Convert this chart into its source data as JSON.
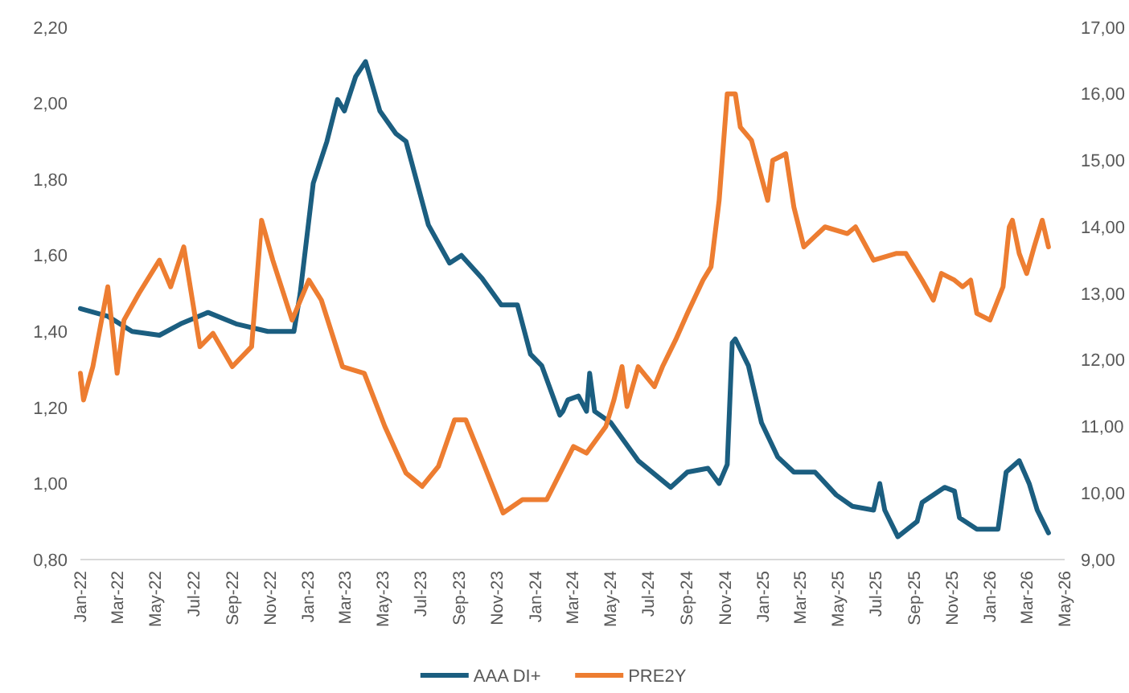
{
  "chart_data": {
    "type": "line",
    "xlim": [
      "2022-01-01",
      "2026-05-01"
    ],
    "xticks": [
      {
        "value": "2022-01",
        "label": "Jan-22"
      },
      {
        "value": "2022-03",
        "label": "Mar-22"
      },
      {
        "value": "2022-05",
        "label": "May-22"
      },
      {
        "value": "2022-07",
        "label": "Jul-22"
      },
      {
        "value": "2022-09",
        "label": "Sep-22"
      },
      {
        "value": "2022-11",
        "label": "Nov-22"
      },
      {
        "value": "2023-01",
        "label": "Jan-23"
      },
      {
        "value": "2023-03",
        "label": "Mar-23"
      },
      {
        "value": "2023-05",
        "label": "May-23"
      },
      {
        "value": "2023-07",
        "label": "Jul-23"
      },
      {
        "value": "2023-09",
        "label": "Sep-23"
      },
      {
        "value": "2023-11",
        "label": "Nov-23"
      },
      {
        "value": "2024-01",
        "label": "Jan-24"
      },
      {
        "value": "2024-03",
        "label": "Mar-24"
      },
      {
        "value": "2024-05",
        "label": "May-24"
      },
      {
        "value": "2024-07",
        "label": "Jul-24"
      },
      {
        "value": "2024-09",
        "label": "Sep-24"
      },
      {
        "value": "2024-11",
        "label": "Nov-24"
      },
      {
        "value": "2025-01",
        "label": "Jan-25"
      },
      {
        "value": "2025-03",
        "label": "Mar-25"
      },
      {
        "value": "2025-05",
        "label": "May-25"
      },
      {
        "value": "2025-07",
        "label": "Jul-25"
      },
      {
        "value": "2025-09",
        "label": "Sep-25"
      },
      {
        "value": "2025-11",
        "label": "Nov-25"
      },
      {
        "value": "2026-01",
        "label": "Jan-26"
      },
      {
        "value": "2026-03",
        "label": "Mar-26"
      },
      {
        "value": "2026-05",
        "label": "May-26"
      }
    ],
    "ylim": [
      0.8,
      2.2
    ],
    "yticks": [
      {
        "value": 0.8,
        "label": "0,80"
      },
      {
        "value": 1.0,
        "label": "1,00"
      },
      {
        "value": 1.2,
        "label": "1,20"
      },
      {
        "value": 1.4,
        "label": "1,40"
      },
      {
        "value": 1.6,
        "label": "1,60"
      },
      {
        "value": 1.8,
        "label": "1,80"
      },
      {
        "value": 2.0,
        "label": "2,00"
      },
      {
        "value": 2.2,
        "label": "2,20"
      }
    ],
    "y2lim": [
      9,
      17
    ],
    "y2ticks": [
      {
        "value": 9,
        "label": "9,00"
      },
      {
        "value": 10,
        "label": "10,00"
      },
      {
        "value": 11,
        "label": "11,00"
      },
      {
        "value": 12,
        "label": "12,00"
      },
      {
        "value": 13,
        "label": "13,00"
      },
      {
        "value": 14,
        "label": "14,00"
      },
      {
        "value": 15,
        "label": "15,00"
      },
      {
        "value": 16,
        "label": "16,00"
      },
      {
        "value": 17,
        "label": "17,00"
      }
    ],
    "grid": false,
    "legend": "bottom",
    "series": [
      {
        "name": "AAA DI+",
        "color": "#1b5e80",
        "axis": "y",
        "x": [
          "2022-01-01",
          "2022-02-14",
          "2022-03-25",
          "2022-05-08",
          "2022-06-11",
          "2022-07-25",
          "2022-09-08",
          "2022-10-29",
          "2022-12-10",
          "2022-12-20",
          "2023-01-10",
          "2023-02-01",
          "2023-02-18",
          "2023-03-01",
          "2023-03-19",
          "2023-04-04",
          "2023-04-27",
          "2023-05-23",
          "2023-06-08",
          "2023-07-14",
          "2023-08-17",
          "2023-09-05",
          "2023-10-08",
          "2023-11-08",
          "2023-12-04",
          "2023-12-25",
          "2024-01-12",
          "2024-02-10",
          "2024-02-15",
          "2024-02-23",
          "2024-03-11",
          "2024-03-24",
          "2024-03-29",
          "2024-04-06",
          "2024-05-02",
          "2024-06-15",
          "2024-08-06",
          "2024-09-02",
          "2024-10-05",
          "2024-10-23",
          "2024-11-05",
          "2024-11-13",
          "2024-11-18",
          "2024-12-09",
          "2024-12-30",
          "2025-01-25",
          "2025-02-20",
          "2025-03-26",
          "2025-04-29",
          "2025-05-25",
          "2025-06-28",
          "2025-07-08",
          "2025-07-16",
          "2025-08-06",
          "2025-09-06",
          "2025-09-14",
          "2025-10-20",
          "2025-11-05",
          "2025-11-13",
          "2025-12-11",
          "2026-01-14",
          "2026-01-27",
          "2026-02-17",
          "2026-03-05",
          "2026-03-18",
          "2026-04-05"
        ],
        "values": [
          1.46,
          1.44,
          1.4,
          1.39,
          1.42,
          1.45,
          1.42,
          1.4,
          1.4,
          1.5,
          1.79,
          1.9,
          2.01,
          1.98,
          2.07,
          2.11,
          1.98,
          1.92,
          1.9,
          1.68,
          1.58,
          1.6,
          1.54,
          1.47,
          1.47,
          1.34,
          1.31,
          1.18,
          1.19,
          1.22,
          1.23,
          1.19,
          1.29,
          1.19,
          1.16,
          1.06,
          0.99,
          1.03,
          1.04,
          1.0,
          1.05,
          1.37,
          1.38,
          1.31,
          1.16,
          1.07,
          1.03,
          1.03,
          0.97,
          0.94,
          0.93,
          1.0,
          0.93,
          0.86,
          0.9,
          0.95,
          0.99,
          0.98,
          0.91,
          0.88,
          0.88,
          1.03,
          1.06,
          1.0,
          0.93,
          0.87
        ]
      },
      {
        "name": "PRE2Y",
        "color": "#ed7d31",
        "axis": "y2",
        "x": [
          "2022-01-01",
          "2022-01-06",
          "2022-01-21",
          "2022-02-14",
          "2022-03-01",
          "2022-03-12",
          "2022-04-05",
          "2022-05-08",
          "2022-05-26",
          "2022-06-16",
          "2022-07-12",
          "2022-08-02",
          "2022-09-02",
          "2022-10-03",
          "2022-10-19",
          "2022-11-06",
          "2022-12-07",
          "2023-01-03",
          "2023-01-23",
          "2023-02-26",
          "2023-04-02",
          "2023-05-05",
          "2023-06-08",
          "2023-07-04",
          "2023-07-30",
          "2023-08-25",
          "2023-09-12",
          "2023-10-08",
          "2023-11-11",
          "2023-12-12",
          "2024-01-20",
          "2024-03-03",
          "2024-03-24",
          "2024-04-24",
          "2024-05-07",
          "2024-05-20",
          "2024-05-28",
          "2024-06-15",
          "2024-07-11",
          "2024-07-24",
          "2024-08-14",
          "2024-09-02",
          "2024-09-27",
          "2024-10-10",
          "2024-10-23",
          "2024-11-05",
          "2024-11-18",
          "2024-11-26",
          "2024-12-14",
          "2025-01-09",
          "2025-01-17",
          "2025-02-07",
          "2025-02-20",
          "2025-03-08",
          "2025-04-11",
          "2025-05-17",
          "2025-05-30",
          "2025-06-28",
          "2025-08-03",
          "2025-08-19",
          "2025-09-14",
          "2025-10-02",
          "2025-10-15",
          "2025-11-05",
          "2025-11-18",
          "2025-12-01",
          "2025-12-11",
          "2026-01-01",
          "2026-01-22",
          "2026-02-01",
          "2026-02-06",
          "2026-02-17",
          "2026-03-01",
          "2026-03-13",
          "2026-03-26",
          "2026-04-05"
        ],
        "values": [
          11.8,
          11.4,
          11.9,
          13.1,
          11.8,
          12.6,
          13.0,
          13.5,
          13.1,
          13.7,
          12.2,
          12.4,
          11.9,
          12.2,
          14.1,
          13.5,
          12.6,
          13.2,
          12.9,
          11.9,
          11.8,
          11.0,
          10.3,
          10.1,
          10.4,
          11.1,
          11.1,
          10.5,
          9.7,
          9.9,
          9.9,
          10.7,
          10.6,
          11.0,
          11.4,
          11.9,
          11.3,
          11.9,
          11.6,
          11.9,
          12.3,
          12.7,
          13.2,
          13.4,
          14.4,
          16.0,
          16.0,
          15.5,
          15.3,
          14.4,
          15.0,
          15.1,
          14.3,
          13.7,
          14.0,
          13.9,
          14.0,
          13.5,
          13.6,
          13.6,
          13.2,
          12.9,
          13.3,
          13.2,
          13.1,
          13.2,
          12.7,
          12.6,
          13.1,
          14.0,
          14.1,
          13.6,
          13.3,
          13.7,
          14.1,
          13.7
        ]
      }
    ]
  }
}
